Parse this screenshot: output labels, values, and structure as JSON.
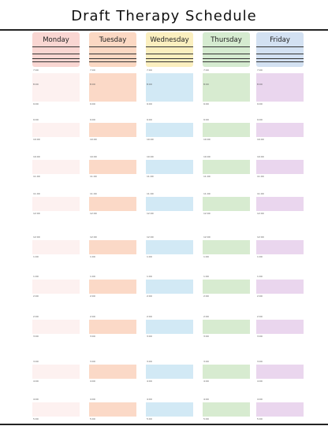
{
  "title": "Draft Therapy Schedule",
  "days": [
    {
      "name": "Monday",
      "header_color": "#f9d6d2",
      "slot_color": "#fdf1f0"
    },
    {
      "name": "Tuesday",
      "header_color": "#fbd8c3",
      "slot_color": "#fbd9c7"
    },
    {
      "name": "Wednesday",
      "header_color": "#fbefbf",
      "slot_color": "#d2e9f5"
    },
    {
      "name": "Thursday",
      "header_color": "#d5ebd0",
      "slot_color": "#d7ebd0"
    },
    {
      "name": "Friday",
      "header_color": "#d3e1f2",
      "slot_color": "#ead6ee"
    }
  ],
  "slots": [
    {
      "start": "7:00",
      "end": "8:00"
    },
    {
      "start": "8:00",
      "end": "9:00"
    },
    {
      "start": "9:00",
      "end": "10:00"
    },
    {
      "start": "10:00",
      "end": "11:00"
    },
    {
      "start": "11:00",
      "end": "12:00"
    },
    {
      "start": "12:00",
      "end": "1:00"
    },
    {
      "start": "1:00",
      "end": "2:00"
    },
    {
      "start": "2:00",
      "end": "3:00"
    },
    {
      "start": "3:00",
      "end": "4:00"
    },
    {
      "start": "4:00",
      "end": "5:00"
    }
  ]
}
